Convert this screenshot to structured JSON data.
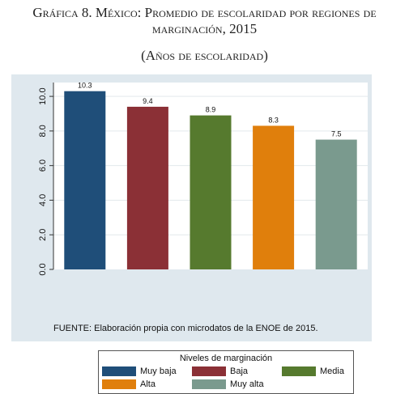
{
  "title": "Gráfica 8. México: Promedio de escolaridad por regiones de marginación, 2015",
  "subtitle": "(Años de escolaridad)",
  "source": "FUENTE: Elaboración propia con microdatos de la ENOE de 2015.",
  "legend": {
    "title": "Niveles de marginación",
    "items": [
      {
        "label": "Muy baja",
        "color": "#1f4e79"
      },
      {
        "label": "Baja",
        "color": "#8b3036"
      },
      {
        "label": "Media",
        "color": "#567a2e"
      },
      {
        "label": "Alta",
        "color": "#e07f0c"
      },
      {
        "label": "Muy alta",
        "color": "#7a9a8e"
      }
    ]
  },
  "chart_data": {
    "type": "bar",
    "categories": [
      "Muy baja",
      "Baja",
      "Media",
      "Alta",
      "Muy alta"
    ],
    "values": [
      10.3,
      9.4,
      8.9,
      8.3,
      7.5
    ],
    "value_labels": [
      "10.3",
      "9.4",
      "8.9",
      "8.3",
      "7.5"
    ],
    "colors": [
      "#1f4e79",
      "#8b3036",
      "#567a2e",
      "#e07f0c",
      "#7a9a8e"
    ],
    "yticks": [
      "0.0",
      "2.0",
      "4.0",
      "6.0",
      "8.0",
      "10.0"
    ],
    "ylim": [
      0,
      10.8
    ],
    "grid": true,
    "legend_position": "bottom"
  }
}
